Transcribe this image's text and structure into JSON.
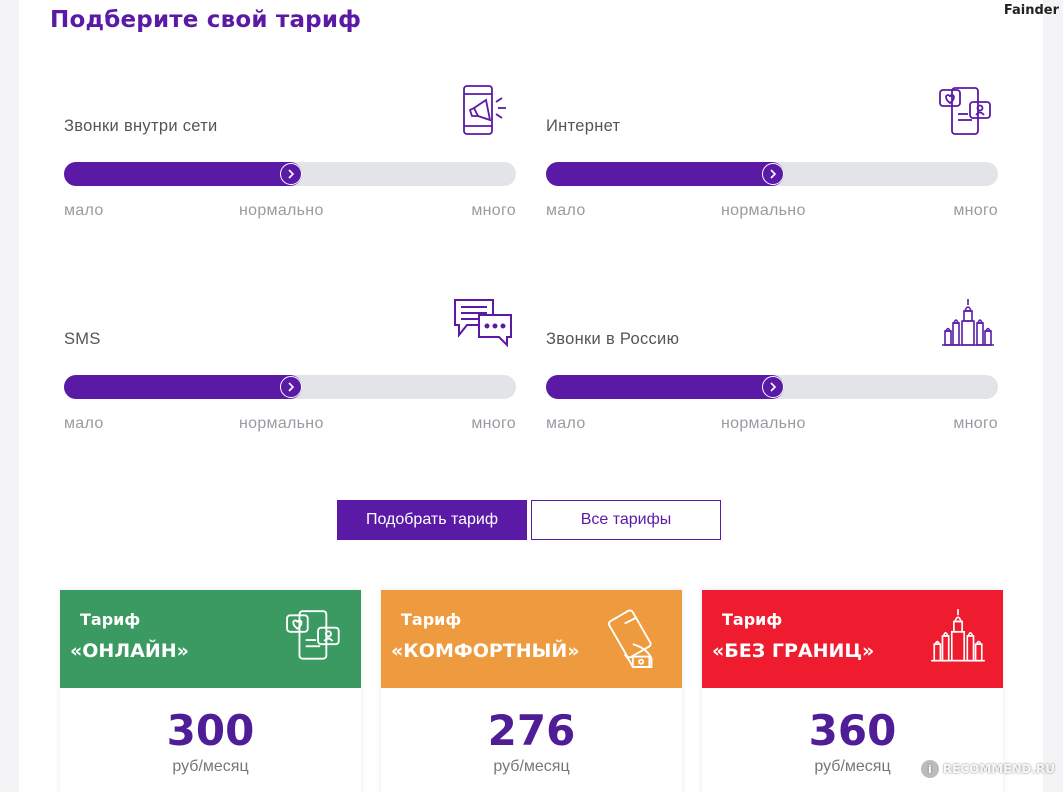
{
  "brand": "Fainder",
  "title": "Подберите свой тариф",
  "accent_color": "#5a1aa6",
  "sliders": [
    {
      "label": "Звонки внутри сети",
      "icon": "phone-megaphone-icon",
      "level_percent": 50,
      "low": "мало",
      "mid": "нормально",
      "high": "много"
    },
    {
      "label": "Интернет",
      "icon": "phone-chat-icon",
      "level_percent": 50,
      "low": "мало",
      "mid": "нормально",
      "high": "много"
    },
    {
      "label": "SMS",
      "icon": "message-bubbles-icon",
      "level_percent": 50,
      "low": "мало",
      "mid": "нормально",
      "high": "много"
    },
    {
      "label": "Звонки в Россию",
      "icon": "kremlin-icon",
      "level_percent": 50,
      "low": "мало",
      "mid": "нормально",
      "high": "много"
    }
  ],
  "buttons": {
    "pick": "Подобрать тариф",
    "all": "Все тарифы"
  },
  "tariffs": [
    {
      "kicker": "Тариф",
      "name": "«ОНЛАЙН»",
      "price": "300",
      "unit": "руб/месяц",
      "color": "#3a9a62",
      "icon": "phone-chat-icon"
    },
    {
      "kicker": "Тариф",
      "name": "«КОМФОРТНЫЙ»",
      "price": "276",
      "unit": "руб/месяц",
      "color": "#ee9b3f",
      "icon": "hand-phone-icon"
    },
    {
      "kicker": "Тариф",
      "name": "«БЕЗ ГРАНИЦ»",
      "price": "360",
      "unit": "руб/месяц",
      "color": "#ee1c2e",
      "icon": "kremlin-icon"
    }
  ],
  "watermark": "RECOMMEND.RU"
}
